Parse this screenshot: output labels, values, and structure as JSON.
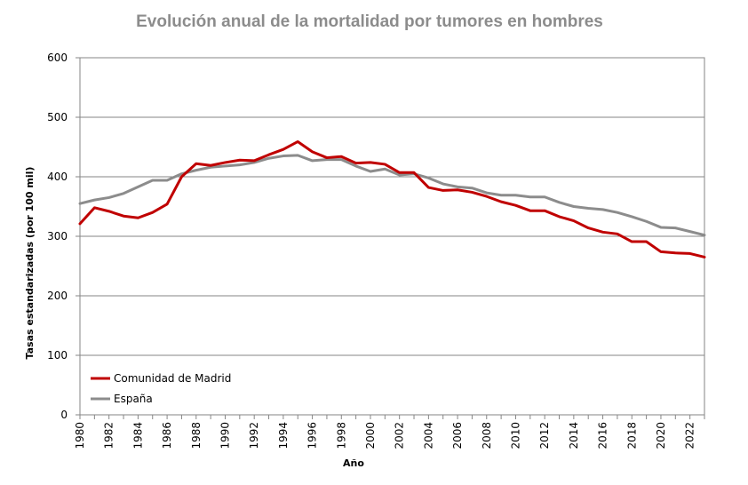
{
  "chart_data": {
    "type": "line",
    "title": "Evolución anual de la mortalidad por tumores en hombres",
    "xlabel": "Año",
    "ylabel": "Tasas estandarizadas (por 100 mil)",
    "ylim": [
      0,
      600
    ],
    "yticks": [
      0,
      100,
      200,
      300,
      400,
      500,
      600
    ],
    "xlim": [
      1980,
      2023
    ],
    "xticks": [
      "1980",
      "1982",
      "1984",
      "1986",
      "1988",
      "1990",
      "1992",
      "1994",
      "1996",
      "1998",
      "2000",
      "2002",
      "2004",
      "2006",
      "2008",
      "2010",
      "2012",
      "2014",
      "2016",
      "2018",
      "2020",
      "2022"
    ],
    "grid": "horizontal",
    "legend_position": "bottom-left",
    "x": [
      1980,
      1981,
      1982,
      1983,
      1984,
      1985,
      1986,
      1987,
      1988,
      1989,
      1990,
      1991,
      1992,
      1993,
      1994,
      1995,
      1996,
      1997,
      1998,
      1999,
      2000,
      2001,
      2002,
      2003,
      2004,
      2005,
      2006,
      2007,
      2008,
      2009,
      2010,
      2011,
      2012,
      2013,
      2014,
      2015,
      2016,
      2017,
      2018,
      2019,
      2020,
      2021,
      2022,
      2023
    ],
    "series": [
      {
        "name": "Comunidad de Madrid",
        "color": "#c00000",
        "values": [
          321,
          348,
          342,
          334,
          331,
          340,
          354,
          400,
          422,
          419,
          424,
          428,
          427,
          437,
          446,
          459,
          442,
          432,
          434,
          423,
          424,
          421,
          407,
          407,
          382,
          377,
          378,
          374,
          367,
          358,
          352,
          343,
          343,
          333,
          326,
          314,
          307,
          304,
          291,
          291,
          274,
          272,
          271,
          265
        ]
      },
      {
        "name": "España",
        "color": "#8c8c8c",
        "values": [
          355,
          361,
          365,
          372,
          383,
          394,
          394,
          405,
          411,
          416,
          418,
          420,
          424,
          431,
          435,
          436,
          427,
          429,
          429,
          418,
          409,
          413,
          403,
          405,
          398,
          388,
          383,
          381,
          373,
          369,
          369,
          366,
          366,
          357,
          350,
          347,
          345,
          340,
          333,
          325,
          315,
          314,
          308,
          302
        ]
      }
    ]
  }
}
